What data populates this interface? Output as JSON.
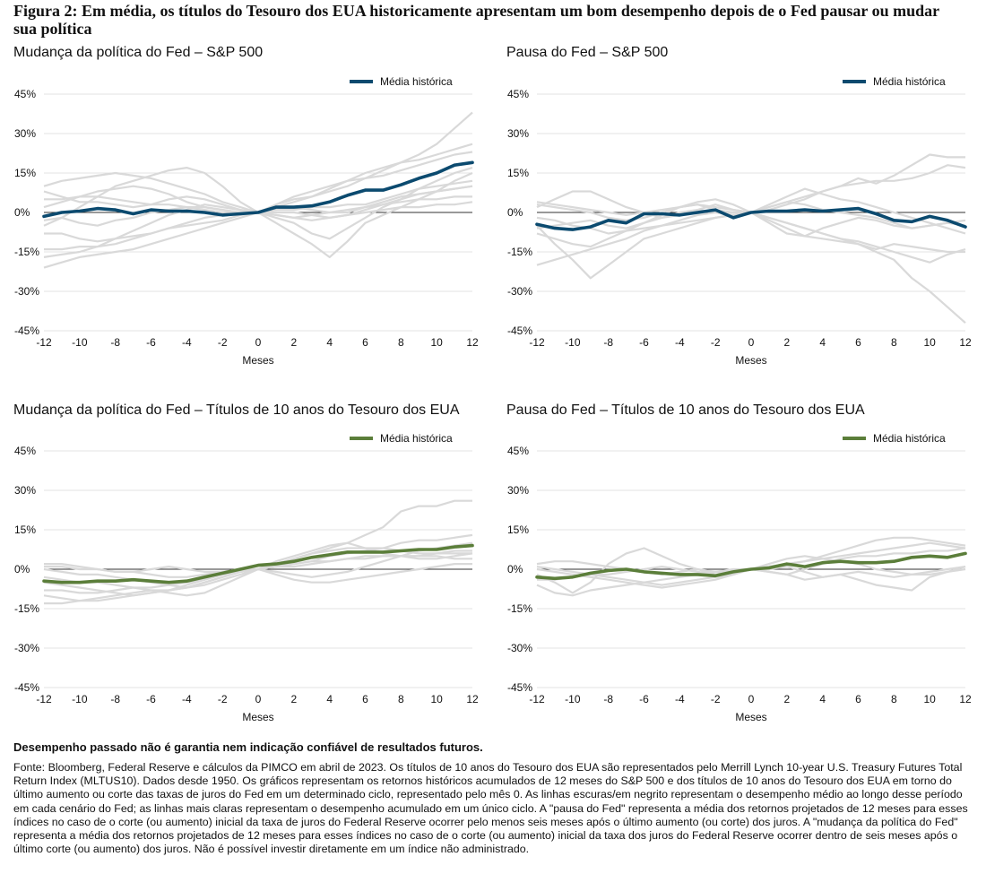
{
  "figure_title": "Figura 2: Em média, os títulos do Tesouro dos EUA historicamente apresentam um bom desempenho depois de o Fed pausar ou mudar sua política",
  "disclaimer": "Desempenho passado não é garantia nem indicação confiável de resultados futuros.",
  "source": "Fonte: Bloomberg, Federal Reserve e cálculos da PIMCO em abril de 2023. Os títulos de 10 anos do Tesouro dos EUA são representados pelo Merrill Lynch 10-year U.S. Treasury Futures Total Return Index (MLTUS10). Dados desde 1950. Os gráficos representam os retornos históricos acumulados de 12 meses do S&P 500 e dos títulos de 10 anos do Tesouro dos EUA em torno do último aumento ou corte das taxas de juros do Fed em um determinado ciclo, representado pelo mês 0. As linhas escuras/em negrito representam o desempenho médio ao longo desse período em cada cenário do Fed; as linhas mais claras representam o desempenho acumulado em um único ciclo. A \"pausa do Fed\" representa a média dos retornos projetados de 12 meses para esses índices no caso de o corte (ou aumento) inicial da taxa de juros do Federal Reserve ocorrer pelo menos seis meses após o último aumento (ou corte) dos juros. A \"mudança da política do Fed\" representa a média dos retornos projetados de 12 meses para esses índices no caso de o corte (ou aumento) inicial da taxa dos juros do Federal Reserve ocorrer dentro de seis meses após o último corte (ou aumento) dos juros. Não é possível investir diretamente em um índice não administrado.",
  "colors": {
    "navy": "#0b4a6f",
    "green": "#5b7e3a",
    "light": "#d9d9d9",
    "zero": "#333333",
    "grid": "#e3e3e3"
  },
  "chart_data": [
    {
      "type": "line",
      "title": "Mudança da política do Fed – S&P 500",
      "xlabel": "Meses",
      "ylabel": "",
      "x": [
        -12,
        -11,
        -10,
        -9,
        -8,
        -7,
        -6,
        -5,
        -4,
        -3,
        -2,
        -1,
        0,
        1,
        2,
        3,
        4,
        5,
        6,
        7,
        8,
        9,
        10,
        11,
        12
      ],
      "xticks": [
        "-12",
        "-10",
        "-8",
        "-6",
        "-4",
        "-2",
        "0",
        "2",
        "4",
        "6",
        "8",
        "10",
        "12"
      ],
      "ylim": [
        -45,
        45
      ],
      "yticks": [
        "45%",
        "30%",
        "15%",
        "0%",
        "-15%",
        "-30%",
        "-45%"
      ],
      "legend": "Média histórica",
      "avg_color": "navy",
      "average": [
        -1.5,
        0,
        0.5,
        1.5,
        1,
        -0.5,
        1,
        0.5,
        0.5,
        0,
        -1,
        -0.5,
        0,
        2,
        2,
        2.5,
        4,
        6.5,
        8.5,
        8.5,
        10.5,
        13,
        15,
        18,
        19
      ],
      "cycles": [
        [
          -5,
          -2,
          2,
          6,
          10,
          12,
          14,
          16,
          17,
          15,
          10,
          4,
          0,
          -4,
          -8,
          -12,
          -17,
          -11,
          -4,
          -1,
          2,
          5,
          8,
          12,
          15
        ],
        [
          2,
          4,
          6,
          8,
          9,
          10,
          9,
          7,
          4,
          2,
          1,
          0,
          0,
          3,
          5,
          6,
          8,
          10,
          13,
          16,
          19,
          22,
          26,
          32,
          38
        ],
        [
          -17,
          -16,
          -15,
          -13,
          -10,
          -7,
          -4,
          -1,
          1,
          3,
          2,
          1,
          0,
          -2,
          -4,
          -8,
          -10,
          -6,
          -2,
          2,
          5,
          9,
          12,
          15,
          17
        ],
        [
          10,
          12,
          13,
          14,
          15,
          14,
          13,
          11,
          9,
          7,
          4,
          2,
          0,
          3,
          6,
          8,
          10,
          12,
          13,
          14,
          16,
          18,
          20,
          22,
          23
        ],
        [
          -3,
          -2,
          -4,
          -5,
          -3,
          -2,
          0,
          1,
          2,
          1,
          0,
          0,
          0,
          2,
          4,
          6,
          9,
          12,
          15,
          17,
          19,
          20,
          22,
          24,
          26
        ],
        [
          -21,
          -19,
          -17,
          -16,
          -15,
          -14,
          -12,
          -10,
          -8,
          -6,
          -4,
          -2,
          0,
          1,
          1,
          2,
          2,
          3,
          3,
          5,
          7,
          9,
          10,
          11,
          12
        ],
        [
          5,
          5,
          6,
          6,
          5,
          4,
          3,
          3,
          2,
          2,
          1,
          0,
          0,
          1,
          2,
          1,
          0,
          0,
          2,
          4,
          6,
          7,
          8,
          9,
          10
        ],
        [
          8,
          6,
          4,
          4,
          3,
          2,
          3,
          5,
          6,
          5,
          3,
          1,
          0,
          -1,
          -2,
          -1,
          0,
          1,
          2,
          3,
          4,
          5,
          5,
          6,
          6
        ],
        [
          -8,
          -8,
          -10,
          -11,
          -10,
          -9,
          -8,
          -6,
          -5,
          -4,
          -3,
          -1,
          0,
          -1,
          -2,
          -3,
          -2,
          -1,
          1,
          3,
          5,
          7,
          8,
          9,
          10
        ],
        [
          -14,
          -14,
          -13,
          -13,
          -12,
          -10,
          -8,
          -6,
          -4,
          -2,
          -1,
          0,
          0,
          0,
          0,
          -1,
          -2,
          -1,
          0,
          1,
          2,
          2,
          3,
          3,
          4
        ]
      ]
    },
    {
      "type": "line",
      "title": "Pausa do Fed – S&P 500",
      "xlabel": "Meses",
      "ylabel": "",
      "x": [
        -12,
        -11,
        -10,
        -9,
        -8,
        -7,
        -6,
        -5,
        -4,
        -3,
        -2,
        -1,
        0,
        1,
        2,
        3,
        4,
        5,
        6,
        7,
        8,
        9,
        10,
        11,
        12
      ],
      "xticks": [
        "-12",
        "-10",
        "-8",
        "-6",
        "-4",
        "-2",
        "0",
        "2",
        "4",
        "6",
        "8",
        "10",
        "12"
      ],
      "ylim": [
        -45,
        45
      ],
      "yticks": [
        "45%",
        "30%",
        "15%",
        "0%",
        "-15%",
        "-30%",
        "-45%"
      ],
      "legend": "Média histórica",
      "avg_color": "navy",
      "average": [
        -4.5,
        -6,
        -6.5,
        -5.5,
        -3,
        -4,
        -0.5,
        -0.5,
        -1,
        0,
        1,
        -2,
        0,
        0.5,
        0.5,
        1,
        0.5,
        1,
        1.5,
        -0.5,
        -3,
        -3.5,
        -1.5,
        -3,
        -5.5
      ],
      "cycles": [
        [
          -5,
          -12,
          -18,
          -25,
          -20,
          -15,
          -10,
          -8,
          -6,
          -4,
          -2,
          -1,
          0,
          -2,
          -4,
          -6,
          -8,
          -10,
          -12,
          -15,
          -18,
          -25,
          -30,
          -36,
          -42
        ],
        [
          -20,
          -18,
          -16,
          -14,
          -12,
          -10,
          -7,
          -5,
          -3,
          -1,
          0,
          0,
          0,
          1,
          3,
          5,
          8,
          10,
          13,
          11,
          14,
          18,
          22,
          21,
          21
        ],
        [
          2,
          5,
          8,
          8,
          5,
          2,
          0,
          -2,
          -1,
          1,
          3,
          1,
          0,
          2,
          4,
          6,
          8,
          10,
          11,
          12,
          12,
          13,
          15,
          18,
          17
        ],
        [
          -8,
          -10,
          -12,
          -13,
          -10,
          -7,
          -4,
          -1,
          2,
          4,
          5,
          3,
          0,
          -2,
          -4,
          -6,
          -8,
          -10,
          -11,
          -13,
          -15,
          -17,
          -19,
          -16,
          -14
        ],
        [
          3,
          2,
          1,
          0,
          -2,
          -3,
          -2,
          0,
          2,
          3,
          1,
          0,
          0,
          -3,
          -6,
          -9,
          -10,
          -11,
          -12,
          -14,
          -12,
          -13,
          -14,
          -15,
          -15
        ],
        [
          -6,
          -5,
          -4,
          -3,
          -5,
          -6,
          -4,
          -2,
          0,
          1,
          0,
          -1,
          0,
          2,
          4,
          3,
          1,
          0,
          -1,
          -2,
          -4,
          -6,
          -5,
          -4,
          -3
        ],
        [
          4,
          3,
          2,
          1,
          0,
          -1,
          0,
          1,
          2,
          3,
          2,
          1,
          0,
          3,
          6,
          9,
          7,
          5,
          4,
          2,
          0,
          -2,
          -4,
          -6,
          -8
        ],
        [
          -2,
          -3,
          -5,
          -6,
          -8,
          -7,
          -6,
          -5,
          -4,
          -3,
          -2,
          -1,
          0,
          -4,
          -8,
          -9,
          -6,
          -4,
          -2,
          -3,
          -5,
          -6,
          -5,
          -4,
          -5
        ]
      ]
    },
    {
      "type": "line",
      "title": "Mudança da política do Fed – Títulos de 10 anos do Tesouro dos EUA",
      "xlabel": "Meses",
      "ylabel": "",
      "x": [
        -12,
        -11,
        -10,
        -9,
        -8,
        -7,
        -6,
        -5,
        -4,
        -3,
        -2,
        -1,
        0,
        1,
        2,
        3,
        4,
        5,
        6,
        7,
        8,
        9,
        10,
        11,
        12
      ],
      "xticks": [
        "-12",
        "-10",
        "-8",
        "-6",
        "-4",
        "-2",
        "0",
        "2",
        "4",
        "6",
        "8",
        "10",
        "12"
      ],
      "ylim": [
        -45,
        45
      ],
      "yticks": [
        "45%",
        "30%",
        "15%",
        "0%",
        "-15%",
        "-30%",
        "-45%"
      ],
      "legend": "Média histórica",
      "avg_color": "green",
      "average": [
        -4.5,
        -5,
        -5,
        -4.5,
        -4.5,
        -4,
        -4.5,
        -5,
        -4.5,
        -3,
        -1.5,
        0,
        1.5,
        2,
        3,
        4.5,
        5.5,
        6.5,
        6.5,
        6.5,
        7,
        7.5,
        7.5,
        8.5,
        9
      ],
      "cycles": [
        [
          -10,
          -11,
          -12,
          -11,
          -10,
          -9,
          -8,
          -8,
          -7,
          -5,
          -3,
          -1,
          0,
          2,
          4,
          6,
          8,
          10,
          13,
          16,
          22,
          24,
          24,
          26,
          26
        ],
        [
          2,
          2,
          1,
          0,
          -1,
          -1,
          0,
          1,
          0,
          -1,
          -1,
          0,
          0,
          1,
          2,
          3,
          5,
          6,
          7,
          8,
          10,
          11,
          11,
          12,
          13
        ],
        [
          -3,
          -4,
          -5,
          -5,
          -6,
          -7,
          -8,
          -9,
          -10,
          -9,
          -6,
          -3,
          0,
          3,
          5,
          7,
          9,
          10,
          8,
          6,
          5,
          4,
          4,
          5,
          6
        ],
        [
          0,
          -1,
          -2,
          -2,
          -3,
          -4,
          -5,
          -6,
          -7,
          -6,
          -4,
          -2,
          0,
          -1,
          -2,
          -3,
          -2,
          -1,
          1,
          3,
          5,
          7,
          8,
          9,
          10
        ],
        [
          -5,
          -6,
          -7,
          -8,
          -9,
          -10,
          -9,
          -8,
          -7,
          -5,
          -3,
          -1,
          0,
          1,
          1,
          2,
          3,
          4,
          5,
          5,
          5,
          5,
          6,
          6,
          6
        ],
        [
          -13,
          -13,
          -12,
          -12,
          -11,
          -10,
          -9,
          -8,
          -6,
          -4,
          -2,
          -1,
          0,
          -2,
          -4,
          -5,
          -5,
          -4,
          -3,
          -2,
          -1,
          0,
          1,
          2,
          2
        ],
        [
          1,
          1,
          0,
          0,
          -1,
          -1,
          -2,
          -3,
          -3,
          -2,
          -1,
          0,
          0,
          2,
          4,
          6,
          7,
          8,
          8,
          8,
          7,
          6,
          6,
          7,
          7
        ],
        [
          -8,
          -8,
          -9,
          -9,
          -8,
          -7,
          -7,
          -6,
          -5,
          -4,
          -2,
          -1,
          0,
          1,
          2,
          3,
          3,
          4,
          4,
          5,
          5,
          5,
          5,
          4,
          4
        ]
      ]
    },
    {
      "type": "line",
      "title": "Pausa do Fed – Títulos de 10 anos do Tesouro dos EUA",
      "xlabel": "Meses",
      "ylabel": "",
      "x": [
        -12,
        -11,
        -10,
        -9,
        -8,
        -7,
        -6,
        -5,
        -4,
        -3,
        -2,
        -1,
        0,
        1,
        2,
        3,
        4,
        5,
        6,
        7,
        8,
        9,
        10,
        11,
        12
      ],
      "xticks": [
        "-12",
        "-10",
        "-8",
        "-6",
        "-4",
        "-2",
        "0",
        "2",
        "4",
        "6",
        "8",
        "10",
        "12"
      ],
      "ylim": [
        -45,
        45
      ],
      "yticks": [
        "45%",
        "30%",
        "15%",
        "0%",
        "-15%",
        "-30%",
        "-45%"
      ],
      "legend": "Média histórica",
      "avg_color": "green",
      "average": [
        -3,
        -3.5,
        -3,
        -1.5,
        -0.5,
        0,
        -1,
        -1.5,
        -2,
        -2,
        -2.5,
        -1,
        0,
        0.5,
        2,
        1,
        2.5,
        3,
        2.5,
        2.5,
        3,
        4.5,
        5,
        4.5,
        6
      ],
      "cycles": [
        [
          -2,
          -5,
          -9,
          -5,
          2,
          6,
          8,
          5,
          2,
          0,
          -2,
          -1,
          0,
          1,
          2,
          3,
          5,
          7,
          9,
          11,
          12,
          12,
          11,
          10,
          9
        ],
        [
          1,
          0,
          -1,
          -2,
          -3,
          -4,
          -5,
          -6,
          -5,
          -4,
          -3,
          -2,
          0,
          -1,
          -2,
          -4,
          -3,
          -2,
          -4,
          -6,
          -7,
          -8,
          -3,
          -1,
          1
        ],
        [
          -6,
          -9,
          -10,
          -8,
          -7,
          -6,
          -5,
          -4,
          -3,
          -2,
          -1,
          -1,
          0,
          1,
          2,
          3,
          4,
          5,
          6,
          7,
          8,
          9,
          10,
          9,
          8
        ],
        [
          2,
          3,
          3,
          2,
          1,
          0,
          -1,
          -2,
          -1,
          0,
          -1,
          0,
          0,
          0,
          1,
          -1,
          -3,
          -2,
          -1,
          -2,
          -3,
          -2,
          -1,
          0,
          1
        ],
        [
          0,
          -1,
          -2,
          -3,
          -4,
          -5,
          -6,
          -7,
          -6,
          -5,
          -4,
          -2,
          0,
          2,
          4,
          5,
          4,
          3,
          2,
          0,
          -1,
          -2,
          -2,
          -1,
          0
        ],
        [
          -4,
          -4,
          -3,
          -2,
          -2,
          -1,
          0,
          1,
          0,
          -1,
          -2,
          -1,
          0,
          -1,
          -2,
          0,
          2,
          4,
          5,
          5,
          6,
          6,
          7,
          7,
          8
        ]
      ]
    }
  ]
}
